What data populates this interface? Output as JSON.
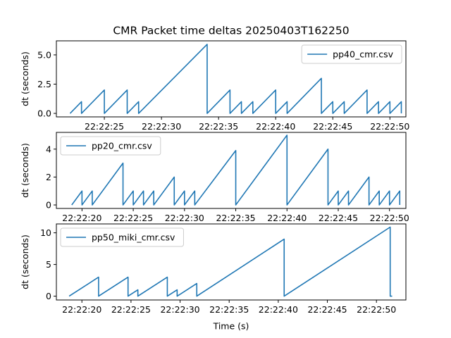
{
  "figure": {
    "title": "CMR Packet time deltas 20250403T162250",
    "xlabel": "Time (s)"
  },
  "colors": {
    "series": "#1f77b4"
  },
  "chart_data": [
    {
      "type": "line",
      "ylabel": "dt (seconds)",
      "legend_position": "top-right",
      "xlim": [
        "22:22:20.8",
        "22:22:51.4"
      ],
      "ylim": [
        -0.3,
        6.2
      ],
      "xticks": [
        "22:22:25",
        "22:22:30",
        "22:22:35",
        "22:22:40",
        "22:22:45",
        "22:22:50"
      ],
      "yticks": [
        0.0,
        2.5,
        5.0
      ],
      "ytick_labels": [
        "0.0",
        "2.5",
        "5.0"
      ],
      "series": [
        {
          "name": "pp40_cmr.csv",
          "x": [
            "22:22:22",
            "22:22:23",
            "22:22:23",
            "22:22:25",
            "22:22:25",
            "22:22:27",
            "22:22:27",
            "22:22:28",
            "22:22:28",
            "22:22:34",
            "22:22:34",
            "22:22:36",
            "22:22:36",
            "22:22:37",
            "22:22:37",
            "22:22:38",
            "22:22:38",
            "22:22:40",
            "22:22:40",
            "22:22:41",
            "22:22:41",
            "22:22:44",
            "22:22:44",
            "22:22:45",
            "22:22:45",
            "22:22:46",
            "22:22:46",
            "22:22:48",
            "22:22:48",
            "22:22:49",
            "22:22:49",
            "22:22:50",
            "22:22:50",
            "22:22:51",
            "22:22:51"
          ],
          "y": [
            0.0,
            1.0,
            0.0,
            2.0,
            0.0,
            2.0,
            0.0,
            1.0,
            0.0,
            5.9,
            0.0,
            2.0,
            0.0,
            1.0,
            0.0,
            1.0,
            0.0,
            2.0,
            0.0,
            1.0,
            0.0,
            3.0,
            0.0,
            1.0,
            0.0,
            1.0,
            0.0,
            2.0,
            0.0,
            1.0,
            0.0,
            1.0,
            0.0,
            1.0,
            0.0
          ]
        }
      ]
    },
    {
      "type": "line",
      "ylabel": "dt (seconds)",
      "legend_position": "top-left",
      "xlim": [
        "22:22:17.5",
        "22:22:51.6"
      ],
      "ylim": [
        -0.25,
        5.2
      ],
      "xticks": [
        "22:22:20",
        "22:22:25",
        "22:22:30",
        "22:22:35",
        "22:22:40",
        "22:22:45",
        "22:22:50"
      ],
      "yticks": [
        0,
        2,
        4
      ],
      "ytick_labels": [
        "0",
        "2",
        "4"
      ],
      "series": [
        {
          "name": "pp20_cmr.csv",
          "x": [
            "22:22:19",
            "22:22:20",
            "22:22:20",
            "22:22:21",
            "22:22:21",
            "22:22:24",
            "22:22:24",
            "22:22:25",
            "22:22:25",
            "22:22:26",
            "22:22:26",
            "22:22:27",
            "22:22:27",
            "22:22:29",
            "22:22:29",
            "22:22:30",
            "22:22:30",
            "22:22:31",
            "22:22:31",
            "22:22:35",
            "22:22:35",
            "22:22:40",
            "22:22:40",
            "22:22:44",
            "22:22:44",
            "22:22:45",
            "22:22:45",
            "22:22:46",
            "22:22:46",
            "22:22:48",
            "22:22:48",
            "22:22:49",
            "22:22:49",
            "22:22:50",
            "22:22:50",
            "22:22:51",
            "22:22:51"
          ],
          "y": [
            0,
            1,
            0,
            1,
            0,
            3,
            0,
            1,
            0,
            1,
            0,
            1,
            0,
            2,
            0,
            1,
            0,
            1,
            0,
            3.9,
            0,
            5.0,
            0,
            4.0,
            0,
            1,
            0,
            1,
            0,
            2,
            0,
            1,
            0,
            1,
            0,
            1,
            0
          ]
        }
      ]
    },
    {
      "type": "line",
      "ylabel": "dt (seconds)",
      "legend_position": "top-left",
      "xlim": [
        "22:22:17.4",
        "22:22:53.0"
      ],
      "ylim": [
        -0.6,
        11.4
      ],
      "xticks": [
        "22:22:20",
        "22:22:25",
        "22:22:30",
        "22:22:35",
        "22:22:40",
        "22:22:45",
        "22:22:50"
      ],
      "yticks": [
        0,
        5,
        10
      ],
      "ytick_labels": [
        "0",
        "5",
        "10"
      ],
      "series": [
        {
          "name": "pp50_miki_cmr.csv",
          "x": [
            "22:22:18.7",
            "22:22:21.7",
            "22:22:21.7",
            "22:22:24.7",
            "22:22:24.7",
            "22:22:25.7",
            "22:22:25.7",
            "22:22:28.7",
            "22:22:28.7",
            "22:22:29.7",
            "22:22:29.7",
            "22:22:31.7",
            "22:22:31.7",
            "22:22:40.6",
            "22:22:40.6",
            "22:22:51.4",
            "22:22:51.4",
            "22:22:51.6"
          ],
          "y": [
            0,
            3,
            0,
            3,
            0,
            1,
            0,
            3,
            0,
            1,
            0,
            2,
            0,
            9.0,
            0,
            10.9,
            0,
            0
          ]
        }
      ]
    }
  ]
}
